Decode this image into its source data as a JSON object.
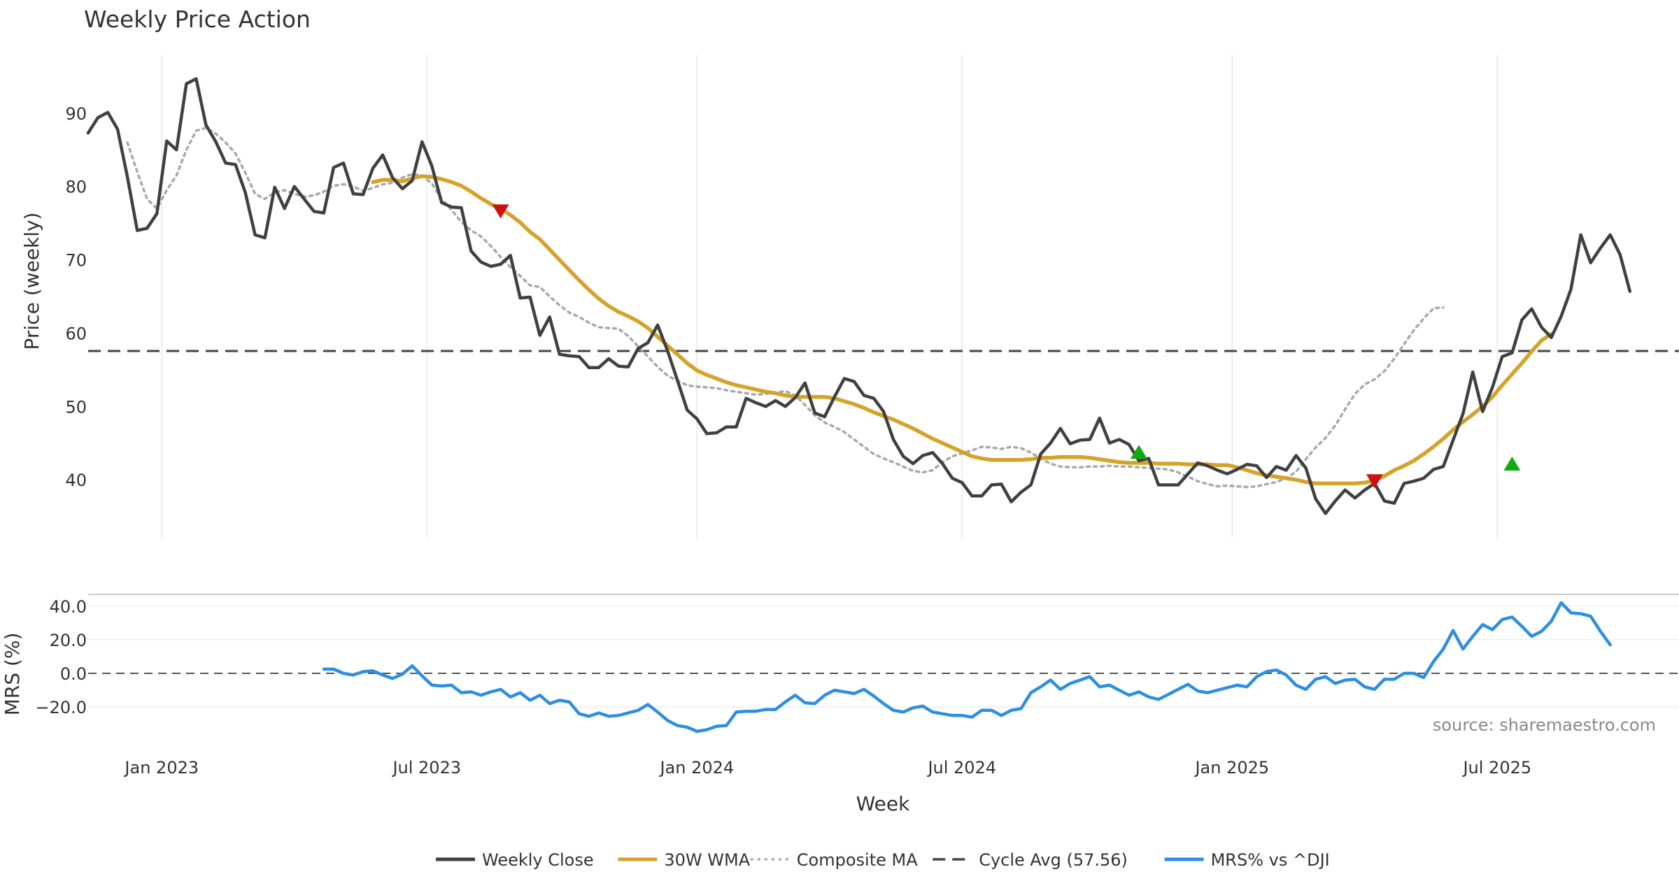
{
  "chart_data": {
    "type": "line",
    "title": "Weekly Price Action",
    "source_text": "source: sharemaestro.com",
    "xlabel": "Week",
    "price_panel": {
      "ylabel": "Price (weekly)",
      "yticks": [
        40,
        50,
        60,
        70,
        80,
        90
      ],
      "ylim": [
        32,
        98
      ],
      "cycle_avg": 57.56
    },
    "mrs_panel": {
      "ylabel": "MRS (%)",
      "yticks": [
        "40.0",
        "20.0",
        "0.0",
        "−20.0"
      ],
      "ytick_values": [
        40,
        20,
        0,
        -20
      ],
      "ylim": [
        -32,
        47
      ]
    },
    "x_ticks": [
      {
        "label": "Jan 2023",
        "week": 7.5
      },
      {
        "label": "Jul 2023",
        "week": 34.5
      },
      {
        "label": "Jan 2024",
        "week": 62
      },
      {
        "label": "Jul 2024",
        "week": 89
      },
      {
        "label": "Jan 2025",
        "week": 116.5
      },
      {
        "label": "Jul 2025",
        "week": 143.5
      }
    ],
    "x_range": [
      0,
      162
    ],
    "series": [
      {
        "name": "Weekly Close",
        "color": "#404040",
        "style": "solid",
        "start_week": 0,
        "values": [
          87.3,
          89.4,
          90.1,
          87.8,
          81.3,
          74.0,
          74.3,
          76.3,
          86.2,
          85.0,
          94.0,
          94.7,
          88.4,
          86.1,
          83.2,
          83.0,
          79.2,
          73.4,
          73.0,
          79.9,
          77.0,
          80.0,
          78.3,
          76.6,
          76.4,
          82.6,
          83.2,
          79.0,
          78.9,
          82.5,
          84.3,
          81.2,
          79.7,
          80.8,
          86.1,
          82.8,
          77.8,
          77.2,
          77.1,
          71.2,
          69.7,
          69.1,
          69.4,
          70.6,
          64.8,
          64.9,
          59.7,
          62.2,
          57.1,
          56.9,
          56.8,
          55.3,
          55.3,
          56.5,
          55.5,
          55.4,
          57.9,
          58.7,
          61.1,
          57.6,
          53.6,
          49.5,
          48.3,
          46.3,
          46.4,
          47.2,
          47.2,
          51.1,
          50.5,
          50.0,
          50.8,
          50.0,
          51.2,
          53.2,
          49.1,
          48.6,
          51.3,
          53.8,
          53.4,
          51.5,
          51.1,
          49.3,
          45.5,
          43.2,
          42.2,
          43.3,
          43.7,
          42.2,
          40.2,
          39.6,
          37.8,
          37.8,
          39.3,
          39.4,
          37.0,
          38.3,
          39.3,
          43.5,
          45.0,
          47.0,
          44.9,
          45.4,
          45.5,
          48.4,
          45.0,
          45.5,
          44.8,
          42.6,
          42.9,
          39.3,
          39.3,
          39.3,
          40.8,
          42.3,
          41.9,
          41.3,
          40.8,
          41.4,
          42.1,
          41.9,
          40.3,
          41.8,
          41.3,
          43.3,
          41.6,
          37.4,
          35.4,
          37.1,
          38.6,
          37.5,
          38.6,
          39.5,
          37.1,
          36.8,
          39.5,
          39.8,
          40.2,
          41.4,
          41.8,
          45.4,
          49.0,
          54.7,
          49.3,
          52.6,
          56.8,
          57.3,
          61.8,
          63.3,
          60.8,
          59.4,
          62.3,
          66.0,
          73.4,
          69.6,
          71.6,
          73.4,
          70.7,
          65.7
        ]
      },
      {
        "name": "30W WMA",
        "color": "#D4A42A",
        "style": "solid",
        "start_week": 29,
        "values": [
          80.6,
          80.9,
          80.9,
          80.7,
          81.1,
          81.4,
          81.3,
          81.0,
          80.6,
          80.1,
          79.3,
          78.4,
          77.6,
          77.0,
          76.1,
          75.1,
          73.8,
          72.8,
          71.4,
          70.0,
          68.6,
          67.2,
          65.9,
          64.7,
          63.7,
          62.9,
          62.3,
          61.6,
          60.7,
          59.5,
          58.3,
          57.1,
          55.9,
          54.9,
          54.3,
          53.8,
          53.3,
          52.9,
          52.6,
          52.3,
          52.0,
          51.8,
          51.5,
          51.3,
          51.3,
          51.3,
          51.3,
          51.1,
          50.7,
          50.3,
          49.8,
          49.2,
          48.7,
          48.2,
          47.6,
          47.0,
          46.3,
          45.6,
          45.0,
          44.4,
          43.8,
          43.2,
          42.9,
          42.7,
          42.7,
          42.7,
          42.7,
          42.8,
          43.0,
          43.0,
          43.1,
          43.1,
          43.1,
          43.0,
          42.8,
          42.6,
          42.4,
          42.3,
          42.3,
          42.3,
          42.2,
          42.2,
          42.2,
          42.1,
          42.1,
          42.1,
          42.0,
          42.0,
          41.7,
          41.3,
          40.9,
          40.6,
          40.4,
          40.2,
          40.0,
          39.7,
          39.5,
          39.5,
          39.5,
          39.5,
          39.5,
          39.6,
          39.9,
          40.5,
          41.3,
          41.9,
          42.6,
          43.5,
          44.5,
          45.6,
          46.8,
          47.9,
          48.9,
          50.0,
          51.3,
          52.9,
          54.4,
          55.9,
          57.5,
          59.0,
          59.9
        ]
      },
      {
        "name": "Composite MA",
        "color": "#AAAAAA",
        "style": "dotted",
        "start_week": 4,
        "values": [
          86.0,
          82.0,
          78.3,
          77.0,
          79.5,
          81.5,
          85.0,
          87.6,
          88.0,
          87.2,
          86.0,
          84.5,
          81.9,
          79.0,
          78.3,
          79.2,
          79.5,
          79.0,
          78.6,
          78.8,
          79.3,
          80.1,
          80.3,
          80.0,
          79.4,
          79.8,
          80.3,
          80.5,
          81.2,
          81.7,
          81.5,
          80.4,
          78.3,
          76.8,
          75.2,
          74.0,
          73.2,
          71.9,
          70.4,
          69.0,
          67.8,
          66.5,
          66.3,
          65.0,
          63.8,
          62.8,
          62.2,
          61.4,
          60.8,
          60.7,
          60.6,
          59.6,
          58.2,
          56.8,
          55.4,
          54.2,
          53.5,
          52.9,
          52.7,
          52.6,
          52.5,
          52.2,
          52.0,
          51.8,
          51.6,
          51.7,
          51.9,
          52.1,
          51.5,
          50.2,
          48.8,
          47.8,
          47.2,
          46.5,
          45.5,
          44.5,
          43.5,
          42.9,
          42.4,
          41.8,
          41.2,
          41.0,
          41.3,
          42.4,
          43.2,
          43.6,
          44.0,
          44.5,
          44.4,
          44.2,
          44.5,
          44.3,
          43.7,
          42.9,
          42.2,
          41.8,
          41.7,
          41.7,
          41.8,
          41.8,
          41.9,
          41.8,
          41.8,
          41.7,
          41.6,
          41.5,
          41.4,
          41.0,
          40.4,
          39.8,
          39.4,
          39.1,
          39.2,
          39.1,
          39.0,
          39.1,
          39.4,
          39.7,
          40.2,
          41.1,
          42.8,
          44.4,
          45.7,
          47.4,
          49.6,
          51.7,
          53.0,
          53.7,
          54.8,
          56.5,
          58.5,
          60.4,
          62.0,
          63.4,
          63.5
        ]
      },
      {
        "name": "MRS% vs ^DJI",
        "color": "#2E8FE0",
        "style": "solid",
        "start_week": 24,
        "values": [
          2.5,
          2.5,
          0.0,
          -1.0,
          1.0,
          1.5,
          -1.0,
          -3.0,
          -0.5,
          4.5,
          -1.5,
          -7.0,
          -7.5,
          -7.0,
          -11.5,
          -11.0,
          -13.0,
          -11.0,
          -9.5,
          -14.0,
          -11.5,
          -16.0,
          -13.0,
          -18.0,
          -16.0,
          -17.0,
          -24.0,
          -25.5,
          -23.5,
          -25.5,
          -25.0,
          -23.5,
          -22.0,
          -18.5,
          -23.0,
          -28.0,
          -31.0,
          -32.0,
          -34.5,
          -33.5,
          -31.5,
          -31.0,
          -23.0,
          -22.5,
          -22.5,
          -21.5,
          -21.5,
          -17.0,
          -13.0,
          -17.5,
          -18.0,
          -13.0,
          -10.0,
          -11.0,
          -12.0,
          -9.5,
          -13.5,
          -18.0,
          -22.0,
          -23.0,
          -20.5,
          -19.5,
          -23.0,
          -24.0,
          -25.0,
          -25.0,
          -26.0,
          -22.0,
          -22.0,
          -25.0,
          -22.0,
          -21.0,
          -11.5,
          -8.0,
          -4.0,
          -9.5,
          -6.0,
          -4.0,
          -2.0,
          -8.0,
          -7.0,
          -10.0,
          -13.0,
          -11.0,
          -14.0,
          -15.5,
          -12.5,
          -9.5,
          -6.5,
          -10.5,
          -11.5,
          -10.0,
          -8.5,
          -7.0,
          -8.0,
          -2.0,
          1.0,
          2.0,
          -1.0,
          -7.0,
          -9.5,
          -3.5,
          -2.0,
          -6.0,
          -4.0,
          -3.5,
          -8.0,
          -9.5,
          -3.5,
          -3.5,
          0.0,
          0.0,
          -2.5,
          7.0,
          14.5,
          25.5,
          14.5,
          22.0,
          29.0,
          26.0,
          32.0,
          33.5,
          28.0,
          22.0,
          25.0,
          31.0,
          42.0,
          36.0,
          35.5,
          34.0,
          25.0,
          17.0
        ]
      }
    ],
    "cycle_avg_line": {
      "name": "Cycle Avg (57.56)",
      "color": "#444444",
      "style": "dashed",
      "value": 57.56
    },
    "signals": [
      {
        "type": "sell",
        "week": 42,
        "price": 76.6
      },
      {
        "type": "buy",
        "week": 107,
        "price": 43.8
      },
      {
        "type": "sell",
        "week": 131,
        "price": 39.8
      },
      {
        "type": "buy",
        "week": 145,
        "price": 42.2
      }
    ],
    "legend": [
      {
        "label": "Weekly Close",
        "color": "#404040",
        "style": "solid"
      },
      {
        "label": "30W WMA",
        "color": "#D4A42A",
        "style": "solid"
      },
      {
        "label": "Composite MA",
        "color": "#AAAAAA",
        "style": "dotted"
      },
      {
        "label": "Cycle Avg (57.56)",
        "color": "#444444",
        "style": "dashed"
      },
      {
        "label": "MRS% vs ^DJI",
        "color": "#2E8FE0",
        "style": "solid"
      }
    ]
  }
}
